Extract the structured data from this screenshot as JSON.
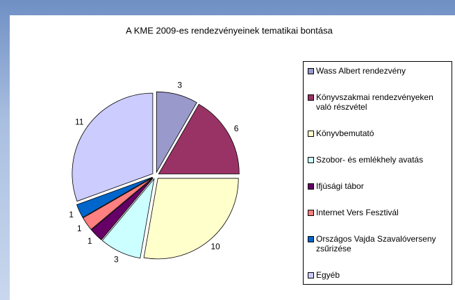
{
  "chart_data": {
    "type": "pie",
    "title": "A KME 2009-es rendezvényeinek tematikai bontása",
    "categories": [
      "Wass Albert rendezvény",
      "Könyvszakmai rendezvényeken való részvétel",
      "Könyvbemutató",
      "Szobor- és emlékhely avatás",
      "Ifjúsági tábor",
      "Internet Vers Fesztivál",
      "Országos Vajda Szavalóverseny zsűrizése",
      "Egyéb"
    ],
    "values": [
      3,
      6,
      10,
      3,
      1,
      1,
      1,
      11
    ],
    "colors": [
      "#9999cc",
      "#993366",
      "#ffffcc",
      "#ccffff",
      "#660066",
      "#ff8080",
      "#0066cc",
      "#ccccff"
    ],
    "legend": "right"
  }
}
